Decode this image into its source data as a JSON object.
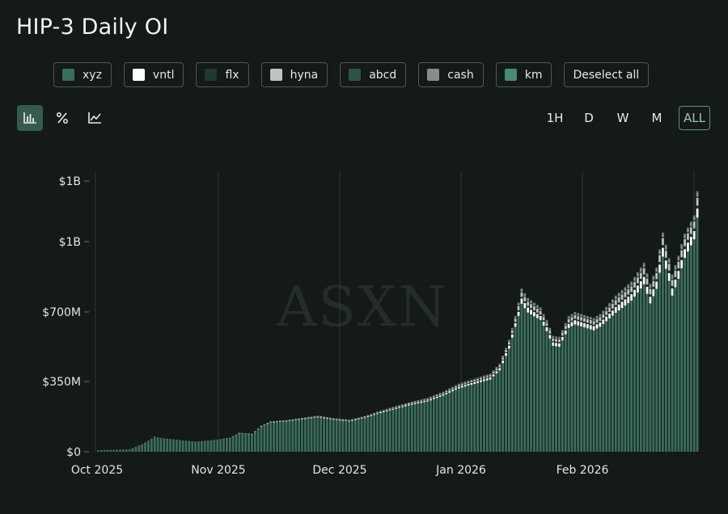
{
  "title": "HIP-3 Daily OI",
  "legend": [
    {
      "label": "xyz",
      "color": "#3c6e5c"
    },
    {
      "label": "vntl",
      "color": "#ffffff"
    },
    {
      "label": "flx",
      "color": "#1f3a30"
    },
    {
      "label": "hyna",
      "color": "#c2c2c2"
    },
    {
      "label": "abcd",
      "color": "#2c5444"
    },
    {
      "label": "cash",
      "color": "#8a8a8a"
    },
    {
      "label": "km",
      "color": "#4a8a73"
    }
  ],
  "deselect_label": "Deselect all",
  "chart_modes": [
    {
      "icon": "bar-chart-icon",
      "active": true
    },
    {
      "icon": "percent-icon",
      "active": false
    },
    {
      "icon": "line-chart-icon",
      "active": false
    }
  ],
  "time_ranges": [
    {
      "label": "1H",
      "active": false
    },
    {
      "label": "D",
      "active": false
    },
    {
      "label": "W",
      "active": false
    },
    {
      "label": "M",
      "active": false
    },
    {
      "label": "ALL",
      "active": true
    }
  ],
  "watermark": "ASXN",
  "chart_data": {
    "type": "bar",
    "stacked": true,
    "title": "HIP-3 Daily OI",
    "x_start": "2025-09-30",
    "x_ticks": [
      "Oct 2025",
      "Nov 2025",
      "Dec 2025",
      "Jan 2026",
      "Feb 2026"
    ],
    "y_ticks": [
      "$0",
      "$350M",
      "$700M",
      "$1B",
      "$1B"
    ],
    "ylim": [
      0,
      1400000000
    ],
    "grid": "vertical",
    "series_colors": {
      "xyz": "#3c6e5c",
      "vntl": "#ffffff",
      "flx": "#1f3a30",
      "hyna": "#c2c2c2",
      "abcd": "#2c5444",
      "cash": "#8a8a8a",
      "km": "#4a8a73"
    },
    "anchors_total_usd": [
      [
        0,
        8000000
      ],
      [
        10,
        12000000
      ],
      [
        14,
        38000000
      ],
      [
        16,
        55000000
      ],
      [
        18,
        75000000
      ],
      [
        20,
        68000000
      ],
      [
        26,
        58000000
      ],
      [
        31,
        50000000
      ],
      [
        38,
        60000000
      ],
      [
        42,
        70000000
      ],
      [
        45,
        95000000
      ],
      [
        49,
        90000000
      ],
      [
        52,
        130000000
      ],
      [
        55,
        152000000
      ],
      [
        60,
        158000000
      ],
      [
        70,
        180000000
      ],
      [
        75,
        168000000
      ],
      [
        80,
        160000000
      ],
      [
        85,
        178000000
      ],
      [
        90,
        205000000
      ],
      [
        95,
        228000000
      ],
      [
        100,
        250000000
      ],
      [
        105,
        268000000
      ],
      [
        110,
        300000000
      ],
      [
        115,
        340000000
      ],
      [
        120,
        365000000
      ],
      [
        125,
        390000000
      ],
      [
        128,
        440000000
      ],
      [
        131,
        560000000
      ],
      [
        134,
        740000000
      ],
      [
        135,
        800000000
      ],
      [
        137,
        760000000
      ],
      [
        139,
        740000000
      ],
      [
        141,
        720000000
      ],
      [
        143,
        660000000
      ],
      [
        145,
        580000000
      ],
      [
        147,
        575000000
      ],
      [
        150,
        680000000
      ],
      [
        152,
        700000000
      ],
      [
        155,
        685000000
      ],
      [
        158,
        670000000
      ],
      [
        160,
        690000000
      ],
      [
        165,
        770000000
      ],
      [
        170,
        830000000
      ],
      [
        174,
        910000000
      ],
      [
        176,
        820000000
      ],
      [
        178,
        890000000
      ],
      [
        180,
        1045000000
      ],
      [
        182,
        930000000
      ],
      [
        183,
        860000000
      ],
      [
        185,
        940000000
      ],
      [
        187,
        1040000000
      ],
      [
        189,
        1100000000
      ],
      [
        190,
        1130000000
      ],
      [
        191,
        1250000000
      ]
    ],
    "series_shares": [
      [
        "xyz",
        0.965
      ],
      [
        "vntl",
        0.012
      ],
      [
        "flx",
        0.004
      ],
      [
        "hyna",
        0.01
      ],
      [
        "abcd",
        0.002
      ],
      [
        "cash",
        0.005
      ],
      [
        "km",
        0.002
      ]
    ]
  }
}
